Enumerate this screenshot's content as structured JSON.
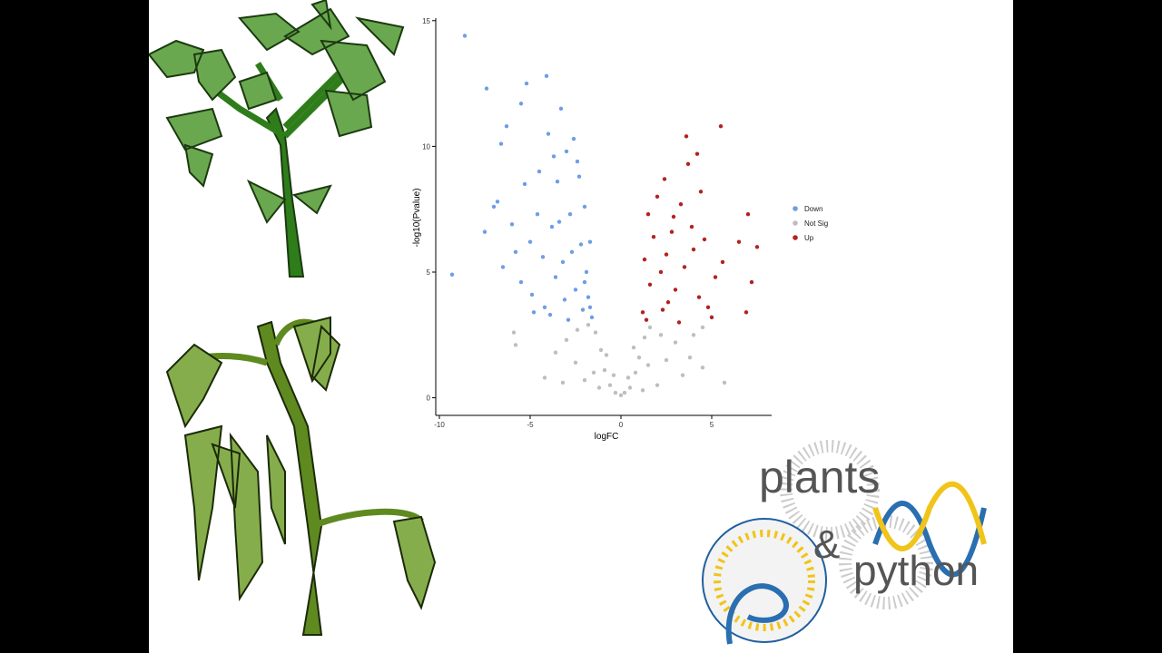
{
  "chart_data": {
    "type": "scatter",
    "xlabel": "logFC",
    "ylabel": "-log10(Pvalue)",
    "xlim": [
      -10.2,
      8.3
    ],
    "ylim": [
      -0.7,
      15.1
    ],
    "xticks": [
      -10,
      -5,
      0,
      5
    ],
    "yticks": [
      0,
      5,
      10,
      15
    ],
    "legend": "right",
    "series": [
      {
        "name": "Down",
        "color": "#6f9de6",
        "x": [
          -8.6,
          -7.4,
          -5.2,
          -4.1,
          -9.3,
          -6.6,
          -6.3,
          -5.5,
          -3.3,
          -7.0,
          -7.5,
          -6.0,
          -5.8,
          -5.3,
          -4.6,
          -4.5,
          -4.0,
          -3.8,
          -3.5,
          -3.2,
          -3.0,
          -2.8,
          -2.6,
          -2.5,
          -2.3,
          -2.2,
          -2.1,
          -2.0,
          -1.9,
          -1.8,
          -1.7,
          -1.6,
          -4.9,
          -5.5,
          -4.2,
          -3.6,
          -2.9,
          -3.9,
          -6.5,
          -5.0,
          -4.3,
          -3.4,
          -2.4,
          -2.7,
          -3.1,
          -2.0,
          -1.7,
          -6.8,
          -4.8,
          -3.7
        ],
        "values": [
          14.4,
          12.3,
          12.5,
          12.8,
          4.9,
          10.1,
          10.8,
          11.7,
          11.5,
          7.6,
          6.6,
          6.9,
          5.8,
          8.5,
          7.3,
          9.0,
          10.5,
          6.8,
          8.6,
          5.4,
          9.8,
          7.3,
          10.3,
          4.3,
          8.8,
          6.1,
          3.5,
          7.6,
          5.0,
          4.0,
          6.2,
          3.2,
          4.1,
          4.6,
          3.6,
          4.8,
          3.1,
          3.3,
          5.2,
          6.2,
          5.6,
          7.0,
          9.4,
          5.8,
          3.9,
          4.6,
          3.6,
          7.8,
          3.4,
          9.6
        ]
      },
      {
        "name": "Not Sig",
        "color": "#bebebe",
        "x": [
          0,
          0.2,
          -0.3,
          0.5,
          -0.6,
          0.8,
          -0.9,
          1.0,
          -1.1,
          1.3,
          -1.4,
          1.6,
          -1.8,
          2.2,
          -2.4,
          3.0,
          -3.0,
          3.8,
          -3.6,
          4.5,
          -4.2,
          5.7,
          -5.8,
          -5.9,
          4.5,
          -1.5,
          1.5,
          2.5,
          -2.5,
          -2.0,
          2.0,
          0.4,
          -0.4,
          3.4,
          -3.2,
          1.2,
          -1.2,
          0.7,
          -0.8,
          4.0
        ],
        "values": [
          0.1,
          0.2,
          0.2,
          0.4,
          0.5,
          1.0,
          1.1,
          1.6,
          1.9,
          2.4,
          2.6,
          2.8,
          2.9,
          2.5,
          2.7,
          2.2,
          2.3,
          1.6,
          1.8,
          1.2,
          0.8,
          0.6,
          2.1,
          2.6,
          2.8,
          1.0,
          1.3,
          1.5,
          1.4,
          0.7,
          0.5,
          0.8,
          0.9,
          0.9,
          0.6,
          0.3,
          0.4,
          2.0,
          1.7,
          2.5
        ]
      },
      {
        "name": "Up",
        "color": "#b22222",
        "x": [
          5.5,
          3.6,
          4.2,
          3.7,
          7.0,
          7.5,
          7.2,
          6.9,
          6.5,
          4.4,
          2.4,
          2.0,
          1.5,
          2.8,
          3.3,
          4.0,
          5.6,
          5.2,
          4.8,
          1.3,
          1.2,
          1.6,
          2.2,
          2.6,
          3.0,
          3.5,
          4.3,
          5.0,
          1.8,
          2.9,
          3.9,
          1.4,
          2.3,
          3.2,
          4.6,
          2.5
        ],
        "values": [
          10.8,
          10.4,
          9.7,
          9.3,
          7.3,
          6.0,
          4.6,
          3.4,
          6.2,
          8.2,
          8.7,
          8.0,
          7.3,
          6.6,
          7.7,
          5.9,
          5.4,
          4.8,
          3.6,
          5.5,
          3.4,
          4.5,
          5.0,
          3.8,
          4.3,
          5.2,
          4.0,
          3.2,
          6.4,
          7.2,
          6.8,
          3.1,
          3.5,
          3.0,
          6.3,
          5.7
        ]
      }
    ]
  },
  "logo": {
    "word1": "plants",
    "amp": "&",
    "word2": "python"
  }
}
